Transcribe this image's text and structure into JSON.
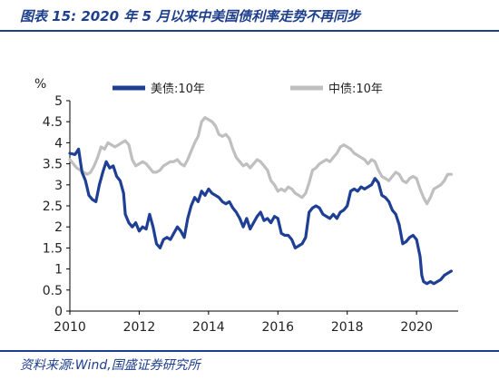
{
  "header": {
    "title": "图表 15:  2020 年 5 月以来中美国债利率走势不再同步"
  },
  "footer": {
    "source": "资料来源:Wind,国盛证券研究所"
  },
  "chart_data": {
    "type": "line",
    "title": "",
    "unit_label": "%",
    "xlabel": "",
    "ylabel": "",
    "xlim": [
      2010,
      2021.2
    ],
    "ylim": [
      0,
      5
    ],
    "x_ticks": [
      "2010",
      "2012",
      "2014",
      "2016",
      "2018",
      "2020"
    ],
    "y_ticks": [
      "0",
      "0.5",
      "1",
      "1.5",
      "2",
      "2.5",
      "3",
      "3.5",
      "4",
      "4.5",
      "5"
    ],
    "grid": false,
    "legend_position": "top",
    "colors": {
      "us": "#1e3f94",
      "cn": "#bfbfbf"
    },
    "series": [
      {
        "name": "美债:10年",
        "x": [
          2010.0,
          2010.15,
          2010.25,
          2010.35,
          2010.45,
          2010.55,
          2010.65,
          2010.75,
          2010.85,
          2010.95,
          2011.05,
          2011.15,
          2011.25,
          2011.35,
          2011.45,
          2011.55,
          2011.6,
          2011.7,
          2011.8,
          2011.9,
          2012.0,
          2012.1,
          2012.2,
          2012.3,
          2012.4,
          2012.5,
          2012.6,
          2012.7,
          2012.8,
          2012.9,
          2013.0,
          2013.1,
          2013.2,
          2013.3,
          2013.4,
          2013.5,
          2013.6,
          2013.7,
          2013.8,
          2013.9,
          2014.0,
          2014.1,
          2014.2,
          2014.3,
          2014.4,
          2014.5,
          2014.6,
          2014.7,
          2014.8,
          2014.9,
          2015.0,
          2015.1,
          2015.2,
          2015.3,
          2015.4,
          2015.5,
          2015.6,
          2015.7,
          2015.8,
          2015.9,
          2016.0,
          2016.1,
          2016.2,
          2016.3,
          2016.4,
          2016.5,
          2016.6,
          2016.7,
          2016.8,
          2016.9,
          2017.0,
          2017.1,
          2017.2,
          2017.3,
          2017.4,
          2017.5,
          2017.6,
          2017.7,
          2017.8,
          2017.9,
          2018.0,
          2018.1,
          2018.2,
          2018.3,
          2018.4,
          2018.5,
          2018.6,
          2018.7,
          2018.8,
          2018.9,
          2019.0,
          2019.1,
          2019.2,
          2019.3,
          2019.4,
          2019.5,
          2019.6,
          2019.7,
          2019.8,
          2019.9,
          2020.0,
          2020.1,
          2020.15,
          2020.2,
          2020.3,
          2020.4,
          2020.5,
          2020.6,
          2020.7,
          2020.8,
          2020.9,
          2021.0
        ],
        "values": [
          3.75,
          3.72,
          3.85,
          3.3,
          3.1,
          2.75,
          2.65,
          2.6,
          3.0,
          3.3,
          3.55,
          3.4,
          3.45,
          3.2,
          3.1,
          2.8,
          2.3,
          2.1,
          2.0,
          2.1,
          1.9,
          2.0,
          1.95,
          2.3,
          2.0,
          1.6,
          1.5,
          1.7,
          1.75,
          1.7,
          1.85,
          2.0,
          1.9,
          1.75,
          2.2,
          2.5,
          2.7,
          2.6,
          2.85,
          2.75,
          2.9,
          2.8,
          2.75,
          2.7,
          2.6,
          2.55,
          2.6,
          2.45,
          2.35,
          2.2,
          2.0,
          2.2,
          1.95,
          2.1,
          2.25,
          2.35,
          2.15,
          2.2,
          2.1,
          2.25,
          2.2,
          1.85,
          1.8,
          1.8,
          1.7,
          1.5,
          1.55,
          1.6,
          1.75,
          2.35,
          2.45,
          2.5,
          2.45,
          2.3,
          2.25,
          2.2,
          2.3,
          2.2,
          2.35,
          2.4,
          2.5,
          2.85,
          2.9,
          2.85,
          2.95,
          2.9,
          2.95,
          3.0,
          3.15,
          3.05,
          2.75,
          2.7,
          2.6,
          2.4,
          2.3,
          2.05,
          1.6,
          1.65,
          1.75,
          1.8,
          1.7,
          1.3,
          0.85,
          0.7,
          0.65,
          0.7,
          0.65,
          0.7,
          0.75,
          0.85,
          0.9,
          0.95
        ]
      },
      {
        "name": "中债:10年",
        "x": [
          2010.0,
          2010.1,
          2010.2,
          2010.3,
          2010.4,
          2010.5,
          2010.6,
          2010.7,
          2010.8,
          2010.9,
          2011.0,
          2011.1,
          2011.2,
          2011.3,
          2011.4,
          2011.5,
          2011.6,
          2011.7,
          2011.8,
          2011.9,
          2012.0,
          2012.1,
          2012.2,
          2012.3,
          2012.4,
          2012.5,
          2012.6,
          2012.7,
          2012.8,
          2012.9,
          2013.0,
          2013.1,
          2013.2,
          2013.3,
          2013.4,
          2013.5,
          2013.6,
          2013.7,
          2013.8,
          2013.9,
          2014.0,
          2014.1,
          2014.2,
          2014.3,
          2014.4,
          2014.5,
          2014.6,
          2014.7,
          2014.8,
          2014.9,
          2015.0,
          2015.1,
          2015.2,
          2015.3,
          2015.4,
          2015.5,
          2015.6,
          2015.7,
          2015.8,
          2015.9,
          2016.0,
          2016.1,
          2016.2,
          2016.3,
          2016.4,
          2016.5,
          2016.6,
          2016.7,
          2016.8,
          2016.9,
          2017.0,
          2017.1,
          2017.2,
          2017.3,
          2017.4,
          2017.5,
          2017.6,
          2017.7,
          2017.8,
          2017.9,
          2018.0,
          2018.1,
          2018.2,
          2018.3,
          2018.4,
          2018.5,
          2018.6,
          2018.7,
          2018.8,
          2018.9,
          2019.0,
          2019.1,
          2019.2,
          2019.3,
          2019.4,
          2019.5,
          2019.6,
          2019.7,
          2019.8,
          2019.9,
          2020.0,
          2020.1,
          2020.2,
          2020.3,
          2020.4,
          2020.5,
          2020.6,
          2020.7,
          2020.8,
          2020.9,
          2021.0
        ],
        "values": [
          3.6,
          3.5,
          3.4,
          3.35,
          3.3,
          3.25,
          3.3,
          3.45,
          3.65,
          3.9,
          3.85,
          4.0,
          3.95,
          3.9,
          3.95,
          4.0,
          4.05,
          3.95,
          3.6,
          3.45,
          3.5,
          3.55,
          3.5,
          3.4,
          3.3,
          3.3,
          3.35,
          3.45,
          3.5,
          3.55,
          3.55,
          3.6,
          3.5,
          3.45,
          3.6,
          3.8,
          4.0,
          4.15,
          4.5,
          4.6,
          4.55,
          4.5,
          4.4,
          4.2,
          4.15,
          4.2,
          4.1,
          3.85,
          3.65,
          3.55,
          3.45,
          3.5,
          3.4,
          3.5,
          3.6,
          3.55,
          3.45,
          3.35,
          3.1,
          3.0,
          2.85,
          2.9,
          2.85,
          2.95,
          2.9,
          2.8,
          2.75,
          2.7,
          2.8,
          3.05,
          3.35,
          3.4,
          3.5,
          3.55,
          3.6,
          3.55,
          3.65,
          3.75,
          3.9,
          3.95,
          3.9,
          3.85,
          3.75,
          3.7,
          3.65,
          3.6,
          3.5,
          3.6,
          3.55,
          3.35,
          3.2,
          3.15,
          3.1,
          3.2,
          3.3,
          3.25,
          3.1,
          3.05,
          3.15,
          3.2,
          3.15,
          2.9,
          2.7,
          2.55,
          2.7,
          2.9,
          2.95,
          3.0,
          3.1,
          3.25,
          3.25
        ]
      }
    ]
  }
}
